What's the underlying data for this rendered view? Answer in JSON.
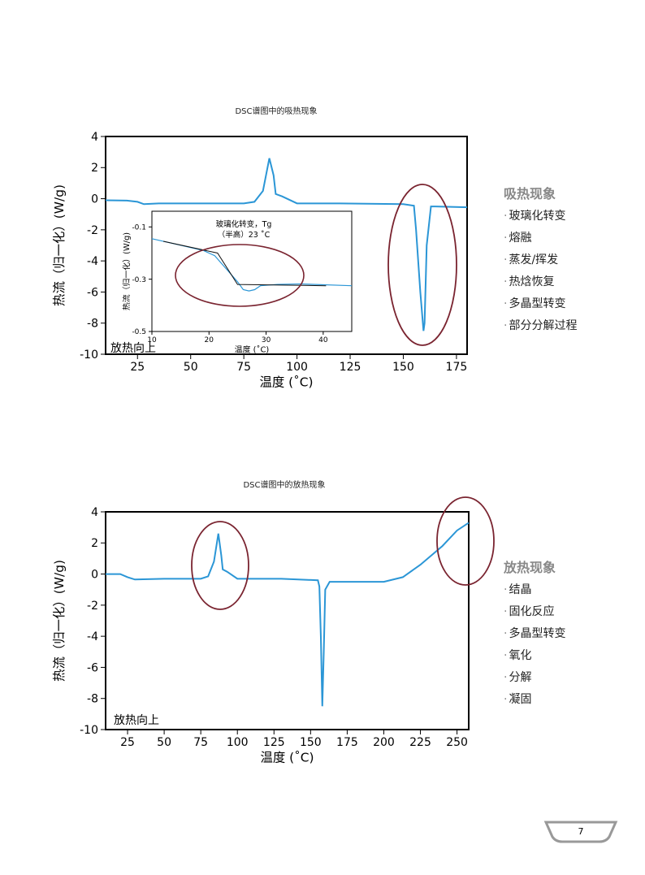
{
  "chart_data": [
    {
      "type": "line",
      "title": "DSC谱图中的吸热现象",
      "xlabel": "温度 (˚C)",
      "ylabel": "热流（归一化）(W/g)",
      "xlim": [
        10,
        180
      ],
      "ylim": [
        -10,
        4
      ],
      "xticks": [
        25,
        50,
        75,
        100,
        125,
        150,
        175
      ],
      "yticks": [
        4,
        2,
        0,
        -2,
        -4,
        -6,
        -8,
        -10
      ],
      "annotation": "放热向上",
      "color": "#2b96d6",
      "x": [
        10,
        20,
        25,
        28,
        35,
        60,
        75,
        80,
        84,
        87,
        89,
        90,
        93,
        100,
        120,
        150,
        155,
        156,
        158,
        159.5,
        160,
        161,
        163,
        165,
        180
      ],
      "y": [
        -0.1,
        -0.12,
        -0.2,
        -0.35,
        -0.3,
        -0.3,
        -0.3,
        -0.2,
        0.5,
        2.6,
        1.5,
        0.3,
        0.15,
        -0.3,
        -0.3,
        -0.35,
        -0.45,
        -2,
        -6,
        -8.5,
        -8,
        -3,
        -0.5,
        -0.5,
        -0.55
      ],
      "inset": {
        "title": "玻璃化转变，Tg",
        "subtitle": "（半高）23 ˚C",
        "xlabel": "温度 (˚C)",
        "ylabel": "热流（归一化）(W/g)",
        "xlim": [
          10,
          45
        ],
        "ylim": [
          -0.5,
          -0.04
        ],
        "xticks": [
          10,
          20,
          30,
          40
        ],
        "yticks": [
          -0.1,
          -0.3,
          -0.5
        ],
        "x": [
          10,
          15,
          19,
          21,
          23,
          25,
          26,
          27,
          28,
          29,
          32,
          36,
          45
        ],
        "y": [
          -0.145,
          -0.17,
          -0.19,
          -0.21,
          -0.26,
          -0.31,
          -0.34,
          -0.345,
          -0.34,
          -0.325,
          -0.32,
          -0.318,
          -0.325
        ],
        "tangent_x": [
          12,
          21.5,
          25,
          40.5
        ],
        "tangent_y": [
          -0.155,
          -0.2,
          -0.32,
          -0.325
        ]
      }
    },
    {
      "type": "line",
      "title": "DSC谱图中的放热现象",
      "xlabel": "温度 (˚C)",
      "ylabel": "热流（归一化）(W/g)",
      "xlim": [
        10,
        258
      ],
      "ylim": [
        -10,
        4
      ],
      "xticks": [
        25,
        50,
        75,
        100,
        125,
        150,
        175,
        200,
        225,
        250
      ],
      "yticks": [
        4,
        2,
        0,
        -2,
        -4,
        -6,
        -8,
        -10
      ],
      "annotation": "放热向上",
      "color": "#2b96d6",
      "x": [
        10,
        20,
        25,
        30,
        50,
        75,
        80,
        84,
        87,
        89,
        90,
        93,
        100,
        130,
        155,
        156,
        157,
        158,
        159,
        160,
        163,
        170,
        200,
        213,
        225,
        240,
        250,
        258
      ],
      "y": [
        0,
        0,
        -0.2,
        -0.35,
        -0.3,
        -0.3,
        -0.15,
        0.8,
        2.6,
        1.2,
        0.3,
        0.15,
        -0.3,
        -0.3,
        -0.4,
        -0.8,
        -4,
        -8.5,
        -5,
        -1,
        -0.5,
        -0.5,
        -0.5,
        -0.2,
        0.6,
        1.8,
        2.8,
        3.3
      ]
    }
  ],
  "legends": [
    {
      "heading": "吸热现象",
      "items": [
        "玻璃化转变",
        "熔融",
        "蒸发/挥发",
        "热焓恢复",
        "多晶型转变",
        "部分分解过程"
      ]
    },
    {
      "heading": "放热现象",
      "items": [
        "结晶",
        "固化反应",
        "多晶型转变",
        "氧化",
        "分解",
        "凝固"
      ]
    }
  ],
  "page_number": "7",
  "colors": {
    "line": "#2b96d6",
    "ellipse": "#7a2430"
  }
}
